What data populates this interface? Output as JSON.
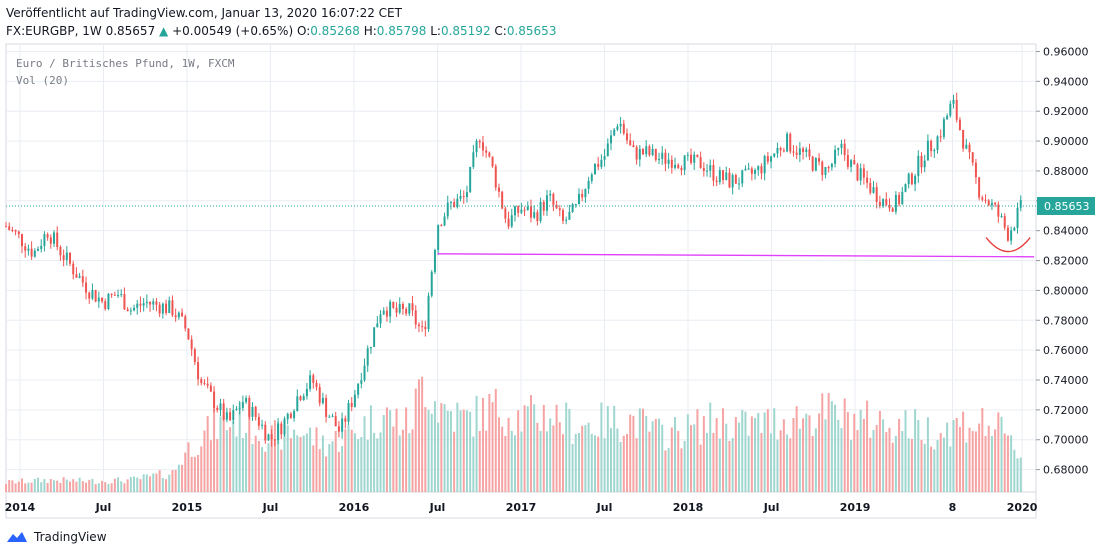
{
  "header": {
    "published": "Veröffentlicht auf TradingView.com, Januar 13, 2020 16:07:22 CET",
    "symbol_prefix": "FX:EURGBP, 1W 0.85657",
    "change": "+0.00549 (+0.65%)",
    "o_label": "O:",
    "o_value": "0.85268",
    "h_label": "H:",
    "h_value": "0.85798",
    "l_label": "L:",
    "l_value": "0.85192",
    "c_label": "C:",
    "c_value": "0.85653"
  },
  "legend": {
    "title": "Euro / Britisches Pfund, 1W, FXCM",
    "volume": "Vol (20)"
  },
  "footer": {
    "brand": "TradingView"
  },
  "colors": {
    "up": "#26a69a",
    "down": "#ef5350",
    "vol_up": "#9fd6cf",
    "vol_down": "#f5a3a3",
    "support": "#e040fb",
    "arc": "#e53935",
    "grid": "#e9edf3"
  },
  "chart_data": {
    "type": "candlestick",
    "title": "Euro / Britisches Pfund, 1W, FXCM",
    "xlabel": "",
    "ylabel": "",
    "ylim": [
      0.665,
      0.965
    ],
    "x_range": [
      "2013-12",
      "2020-02"
    ],
    "y_ticks": [
      "0.96000",
      "0.94000",
      "0.92000",
      "0.90000",
      "0.88000",
      "0.86000",
      "0.84000",
      "0.82000",
      "0.80000",
      "0.78000",
      "0.76000",
      "0.74000",
      "0.72000",
      "0.70000",
      "0.68000"
    ],
    "x_ticks": [
      {
        "label": "2014",
        "date": "2014-01"
      },
      {
        "label": "Jul",
        "date": "2014-07"
      },
      {
        "label": "2015",
        "date": "2015-01"
      },
      {
        "label": "Jul",
        "date": "2015-07"
      },
      {
        "label": "2016",
        "date": "2016-01"
      },
      {
        "label": "Jul",
        "date": "2016-07"
      },
      {
        "label": "2017",
        "date": "2017-01"
      },
      {
        "label": "Jul",
        "date": "2017-07"
      },
      {
        "label": "2018",
        "date": "2018-01"
      },
      {
        "label": "Jul",
        "date": "2018-07"
      },
      {
        "label": "2019",
        "date": "2019-01"
      },
      {
        "label": "8",
        "date": "2019-08"
      },
      {
        "label": "2020",
        "date": "2020-01"
      }
    ],
    "last_price": "0.85653",
    "price_path": [
      [
        "2013-12",
        0.843
      ],
      [
        "2014-01",
        0.835
      ],
      [
        "2014-02",
        0.825
      ],
      [
        "2014-03",
        0.84
      ],
      [
        "2014-04",
        0.825
      ],
      [
        "2014-05",
        0.812
      ],
      [
        "2014-06",
        0.8
      ],
      [
        "2014-07",
        0.792
      ],
      [
        "2014-08",
        0.798
      ],
      [
        "2014-09",
        0.787
      ],
      [
        "2014-10",
        0.792
      ],
      [
        "2014-11",
        0.79
      ],
      [
        "2014-12",
        0.787
      ],
      [
        "2015-01",
        0.773
      ],
      [
        "2015-02",
        0.738
      ],
      [
        "2015-03",
        0.725
      ],
      [
        "2015-04",
        0.711
      ],
      [
        "2015-05",
        0.726
      ],
      [
        "2015-06",
        0.715
      ],
      [
        "2015-07",
        0.7
      ],
      [
        "2015-08",
        0.712
      ],
      [
        "2015-09",
        0.73
      ],
      [
        "2015-10",
        0.74
      ],
      [
        "2015-11",
        0.72
      ],
      [
        "2015-12",
        0.705
      ],
      [
        "2016-01",
        0.73
      ],
      [
        "2016-02",
        0.76
      ],
      [
        "2016-03",
        0.79
      ],
      [
        "2016-04",
        0.785
      ],
      [
        "2016-05",
        0.786
      ],
      [
        "2016-06",
        0.77
      ],
      [
        "2016-07",
        0.845
      ],
      [
        "2016-08",
        0.858
      ],
      [
        "2016-09",
        0.862
      ],
      [
        "2016-10",
        0.905
      ],
      [
        "2016-11",
        0.88
      ],
      [
        "2016-12",
        0.845
      ],
      [
        "2017-01",
        0.855
      ],
      [
        "2017-02",
        0.85
      ],
      [
        "2017-03",
        0.862
      ],
      [
        "2017-04",
        0.845
      ],
      [
        "2017-05",
        0.855
      ],
      [
        "2017-06",
        0.88
      ],
      [
        "2017-07",
        0.89
      ],
      [
        "2017-08",
        0.915
      ],
      [
        "2017-09",
        0.892
      ],
      [
        "2017-10",
        0.892
      ],
      [
        "2017-11",
        0.888
      ],
      [
        "2017-12",
        0.888
      ],
      [
        "2018-01",
        0.885
      ],
      [
        "2018-02",
        0.885
      ],
      [
        "2018-03",
        0.877
      ],
      [
        "2018-04",
        0.873
      ],
      [
        "2018-05",
        0.875
      ],
      [
        "2018-06",
        0.88
      ],
      [
        "2018-07",
        0.89
      ],
      [
        "2018-08",
        0.9
      ],
      [
        "2018-09",
        0.893
      ],
      [
        "2018-10",
        0.885
      ],
      [
        "2018-11",
        0.88
      ],
      [
        "2018-12",
        0.895
      ],
      [
        "2019-01",
        0.88
      ],
      [
        "2019-02",
        0.87
      ],
      [
        "2019-03",
        0.86
      ],
      [
        "2019-04",
        0.858
      ],
      [
        "2019-05",
        0.875
      ],
      [
        "2019-06",
        0.892
      ],
      [
        "2019-07",
        0.903
      ],
      [
        "2019-08",
        0.926
      ],
      [
        "2019-09",
        0.893
      ],
      [
        "2019-10",
        0.865
      ],
      [
        "2019-11",
        0.855
      ],
      [
        "2019-12",
        0.838
      ],
      [
        "2020-01",
        0.8565
      ]
    ],
    "volume_path": [
      [
        "2013-12",
        0.08
      ],
      [
        "2014-03",
        0.1
      ],
      [
        "2014-06",
        0.09
      ],
      [
        "2014-09",
        0.1
      ],
      [
        "2014-12",
        0.16
      ],
      [
        "2015-01",
        0.35
      ],
      [
        "2015-03",
        0.55
      ],
      [
        "2015-05",
        0.6
      ],
      [
        "2015-07",
        0.45
      ],
      [
        "2015-09",
        0.52
      ],
      [
        "2015-11",
        0.4
      ],
      [
        "2016-01",
        0.5
      ],
      [
        "2016-03",
        0.65
      ],
      [
        "2016-05",
        0.55
      ],
      [
        "2016-06",
        0.95
      ],
      [
        "2016-07",
        0.72
      ],
      [
        "2016-09",
        0.6
      ],
      [
        "2016-11",
        0.7
      ],
      [
        "2017-01",
        0.62
      ],
      [
        "2017-03",
        0.65
      ],
      [
        "2017-05",
        0.55
      ],
      [
        "2017-07",
        0.58
      ],
      [
        "2017-09",
        0.6
      ],
      [
        "2017-11",
        0.48
      ],
      [
        "2018-01",
        0.52
      ],
      [
        "2018-03",
        0.6
      ],
      [
        "2018-05",
        0.55
      ],
      [
        "2018-07",
        0.58
      ],
      [
        "2018-09",
        0.62
      ],
      [
        "2018-11",
        0.66
      ],
      [
        "2019-01",
        0.6
      ],
      [
        "2019-03",
        0.58
      ],
      [
        "2019-05",
        0.55
      ],
      [
        "2019-07",
        0.5
      ],
      [
        "2019-09",
        0.58
      ],
      [
        "2019-11",
        0.55
      ],
      [
        "2020-01",
        0.3
      ]
    ],
    "annotations": [
      {
        "type": "horizontal_support_line",
        "from": "2016-07",
        "to": "2020-01",
        "y_start": 0.8245,
        "y_end": 0.8225
      },
      {
        "type": "rounded_bottom_arc",
        "center": "2019-12",
        "y": 0.826
      }
    ]
  }
}
